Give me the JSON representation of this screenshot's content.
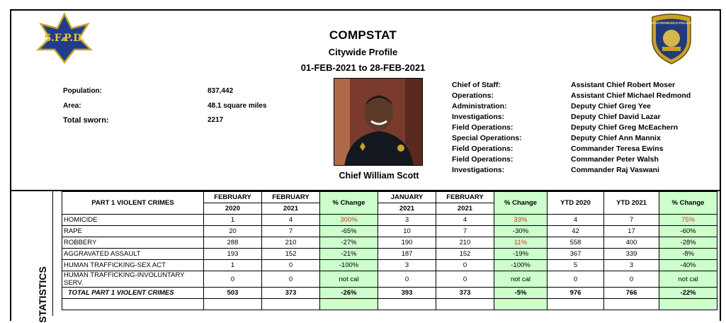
{
  "header": {
    "title": "COMPSTAT",
    "subtitle": "Citywide Profile",
    "date_range": "01-FEB-2021 to 28-FEB-2021",
    "left_logo_text": "S.F.P.D.",
    "right_logo_text": "SAN FRANCISCO POLICE"
  },
  "profile": [
    {
      "label": "Population:",
      "value": "837,442"
    },
    {
      "label": "Area:",
      "value": "48.1 square miles"
    },
    {
      "label": "Total sworn:",
      "value": "2217"
    }
  ],
  "chief": {
    "name": "Chief William Scott"
  },
  "staff": [
    {
      "role": "Chief of Staff:",
      "name": "Assistant Chief Robert Moser"
    },
    {
      "role": "Operations:",
      "name": "Assistant Chief Michael Redmond"
    },
    {
      "role": "Administration:",
      "name": "Deputy Chief Greg Yee"
    },
    {
      "role": "Investigations:",
      "name": "Deputy Chief David Lazar"
    },
    {
      "role": "Field Operations:",
      "name": "Deputy Chief Greg McEachern"
    },
    {
      "role": "Special Operations:",
      "name": "Deputy Chief Ann Mannix"
    },
    {
      "role": "Field Operations:",
      "name": "Commander Teresa Ewins"
    },
    {
      "role": "Field Operations:",
      "name": "Commander Peter Walsh"
    },
    {
      "role": "Investigations:",
      "name": "Commander Raj Vaswani"
    }
  ],
  "side_label": "STATISTICS",
  "table": {
    "title": "PART 1 VIOLENT CRIMES",
    "headers": {
      "feb": "FEBRUARY",
      "jan": "JANUARY",
      "y2020": "2020",
      "y2021": "2021",
      "pct": "% Change",
      "ytd2020": "YTD 2020",
      "ytd2021": "YTD 2021"
    },
    "rows": [
      {
        "name": "HOMICIDE",
        "f20": "1",
        "f21": "4",
        "p1": "300%",
        "j21": "3",
        "f21b": "4",
        "p2": "33%",
        "y20": "4",
        "y21": "7",
        "p3": "75%"
      },
      {
        "name": "RAPE",
        "f20": "20",
        "f21": "7",
        "p1": "-65%",
        "j21": "10",
        "f21b": "7",
        "p2": "-30%",
        "y20": "42",
        "y21": "17",
        "p3": "-60%"
      },
      {
        "name": "ROBBERY",
        "f20": "288",
        "f21": "210",
        "p1": "-27%",
        "j21": "190",
        "f21b": "210",
        "p2": "11%",
        "y20": "558",
        "y21": "400",
        "p3": "-28%"
      },
      {
        "name": "AGGRAVATED ASSAULT",
        "f20": "193",
        "f21": "152",
        "p1": "-21%",
        "j21": "187",
        "f21b": "152",
        "p2": "-19%",
        "y20": "367",
        "y21": "339",
        "p3": "-8%"
      },
      {
        "name": "HUMAN TRAFFICKING-SEX ACT",
        "f20": "1",
        "f21": "0",
        "p1": "-100%",
        "j21": "3",
        "f21b": "0",
        "p2": "-100%",
        "y20": "5",
        "y21": "3",
        "p3": "-40%"
      },
      {
        "name": "HUMAN TRAFFICKING-INVOLUNTARY SERV.",
        "f20": "0",
        "f21": "0",
        "p1": "not cal",
        "j21": "0",
        "f21b": "0",
        "p2": "not cal",
        "y20": "0",
        "y21": "0",
        "p3": "not cal"
      }
    ],
    "total": {
      "name": "TOTAL PART 1 VIOLENT CRIMES",
      "f20": "503",
      "f21": "373",
      "p1": "-26%",
      "j21": "393",
      "f21b": "373",
      "p2": "-5%",
      "y20": "976",
      "y21": "766",
      "p3": "-22%"
    }
  },
  "colors": {
    "green_cell": "#ccffcc",
    "increase_text": "#e0301e"
  }
}
